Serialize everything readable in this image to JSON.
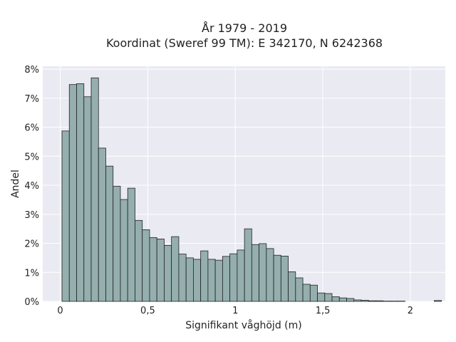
{
  "chart_data": {
    "type": "bar",
    "title_lines": [
      "År 1979 - 2019",
      "Koordinat (Sweref 99 TM): E 342170, N 6242368"
    ],
    "xlabel": "Signifikant våghöjd (m)",
    "ylabel": "Andel",
    "xlim": [
      -0.1,
      2.2
    ],
    "ylim": [
      0,
      8.1
    ],
    "x_ticks": [
      {
        "value": 0,
        "label": "0"
      },
      {
        "value": 0.5,
        "label": "0,5"
      },
      {
        "value": 1,
        "label": "1"
      },
      {
        "value": 1.5,
        "label": "1,5"
      },
      {
        "value": 2,
        "label": "2"
      }
    ],
    "y_ticks": [
      {
        "value": 0,
        "label": "0%"
      },
      {
        "value": 1,
        "label": "1%"
      },
      {
        "value": 2,
        "label": "2%"
      },
      {
        "value": 3,
        "label": "3%"
      },
      {
        "value": 4,
        "label": "4%"
      },
      {
        "value": 5,
        "label": "5%"
      },
      {
        "value": 6,
        "label": "6%"
      },
      {
        "value": 7,
        "label": "7%"
      },
      {
        "value": 8,
        "label": "8%"
      }
    ],
    "bin_width": 0.0417,
    "bin_start": 0.01,
    "values": [
      5.87,
      7.47,
      7.5,
      7.05,
      7.7,
      5.28,
      4.66,
      3.97,
      3.51,
      3.9,
      2.79,
      2.47,
      2.2,
      2.15,
      1.93,
      2.23,
      1.63,
      1.5,
      1.45,
      1.74,
      1.45,
      1.42,
      1.55,
      1.64,
      1.77,
      2.5,
      1.96,
      1.99,
      1.82,
      1.59,
      1.56,
      1.02,
      0.81,
      0.59,
      0.56,
      0.29,
      0.27,
      0.16,
      0.12,
      0.1,
      0.05,
      0.04,
      0.02,
      0.02,
      0.01,
      0.01,
      0.01,
      0.0,
      0.0,
      0.0,
      0.0,
      0.03
    ],
    "grid": true,
    "colors": {
      "bar": "#95aeae",
      "edge": "#222222",
      "plot_bg": "#eaeaf2"
    }
  }
}
